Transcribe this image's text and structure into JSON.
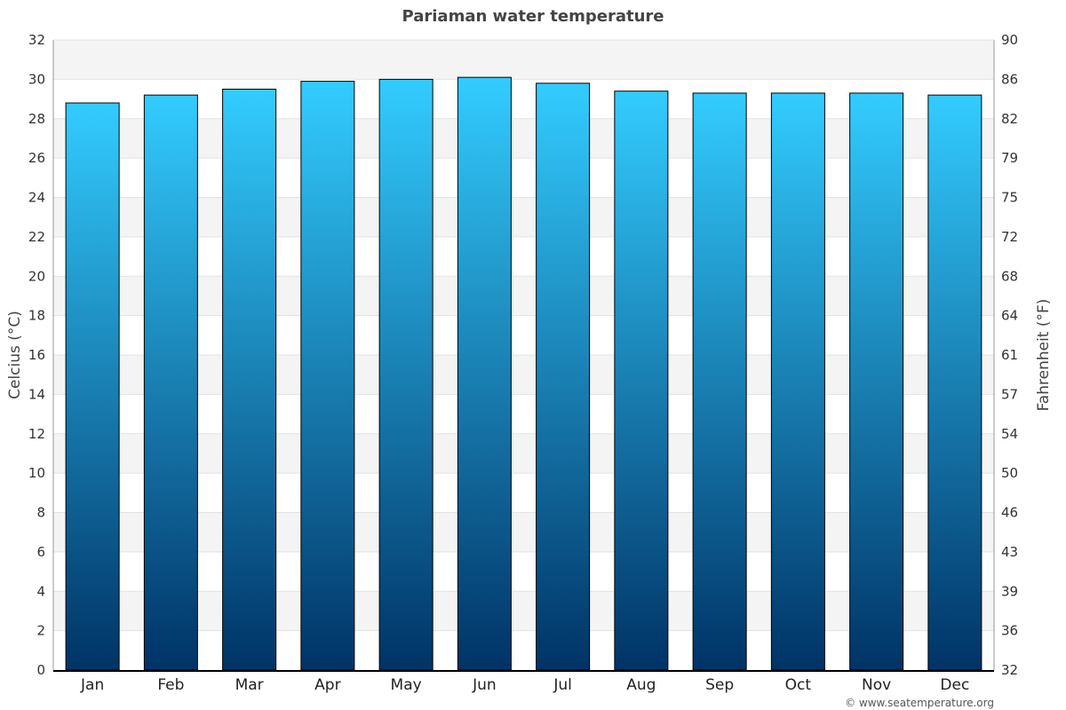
{
  "chart_data": {
    "type": "bar",
    "title": "Pariaman water temperature",
    "categories": [
      "Jan",
      "Feb",
      "Mar",
      "Apr",
      "May",
      "Jun",
      "Jul",
      "Aug",
      "Sep",
      "Oct",
      "Nov",
      "Dec"
    ],
    "values": [
      28.8,
      29.2,
      29.5,
      29.9,
      30.0,
      30.1,
      29.8,
      29.4,
      29.3,
      29.3,
      29.3,
      29.2
    ],
    "ylabel": "Celcius (°C)",
    "ylabel_right": "Fahrenheit (°F)",
    "ylim": [
      0,
      32
    ],
    "y_ticks": [
      "0",
      "2",
      "4",
      "6",
      "8",
      "10",
      "12",
      "14",
      "16",
      "18",
      "20",
      "22",
      "24",
      "26",
      "28",
      "30",
      "32"
    ],
    "y_right_ticks": [
      "32",
      "36",
      "39",
      "43",
      "46",
      "50",
      "54",
      "57",
      "61",
      "64",
      "68",
      "72",
      "75",
      "79",
      "82",
      "86",
      "90"
    ],
    "grid": true,
    "legend": "none",
    "bar_color_top": "#33ccff",
    "bar_color_bottom": "#003366",
    "band_color": "#f4f4f4"
  },
  "credit": "© www.seatemperature.org"
}
